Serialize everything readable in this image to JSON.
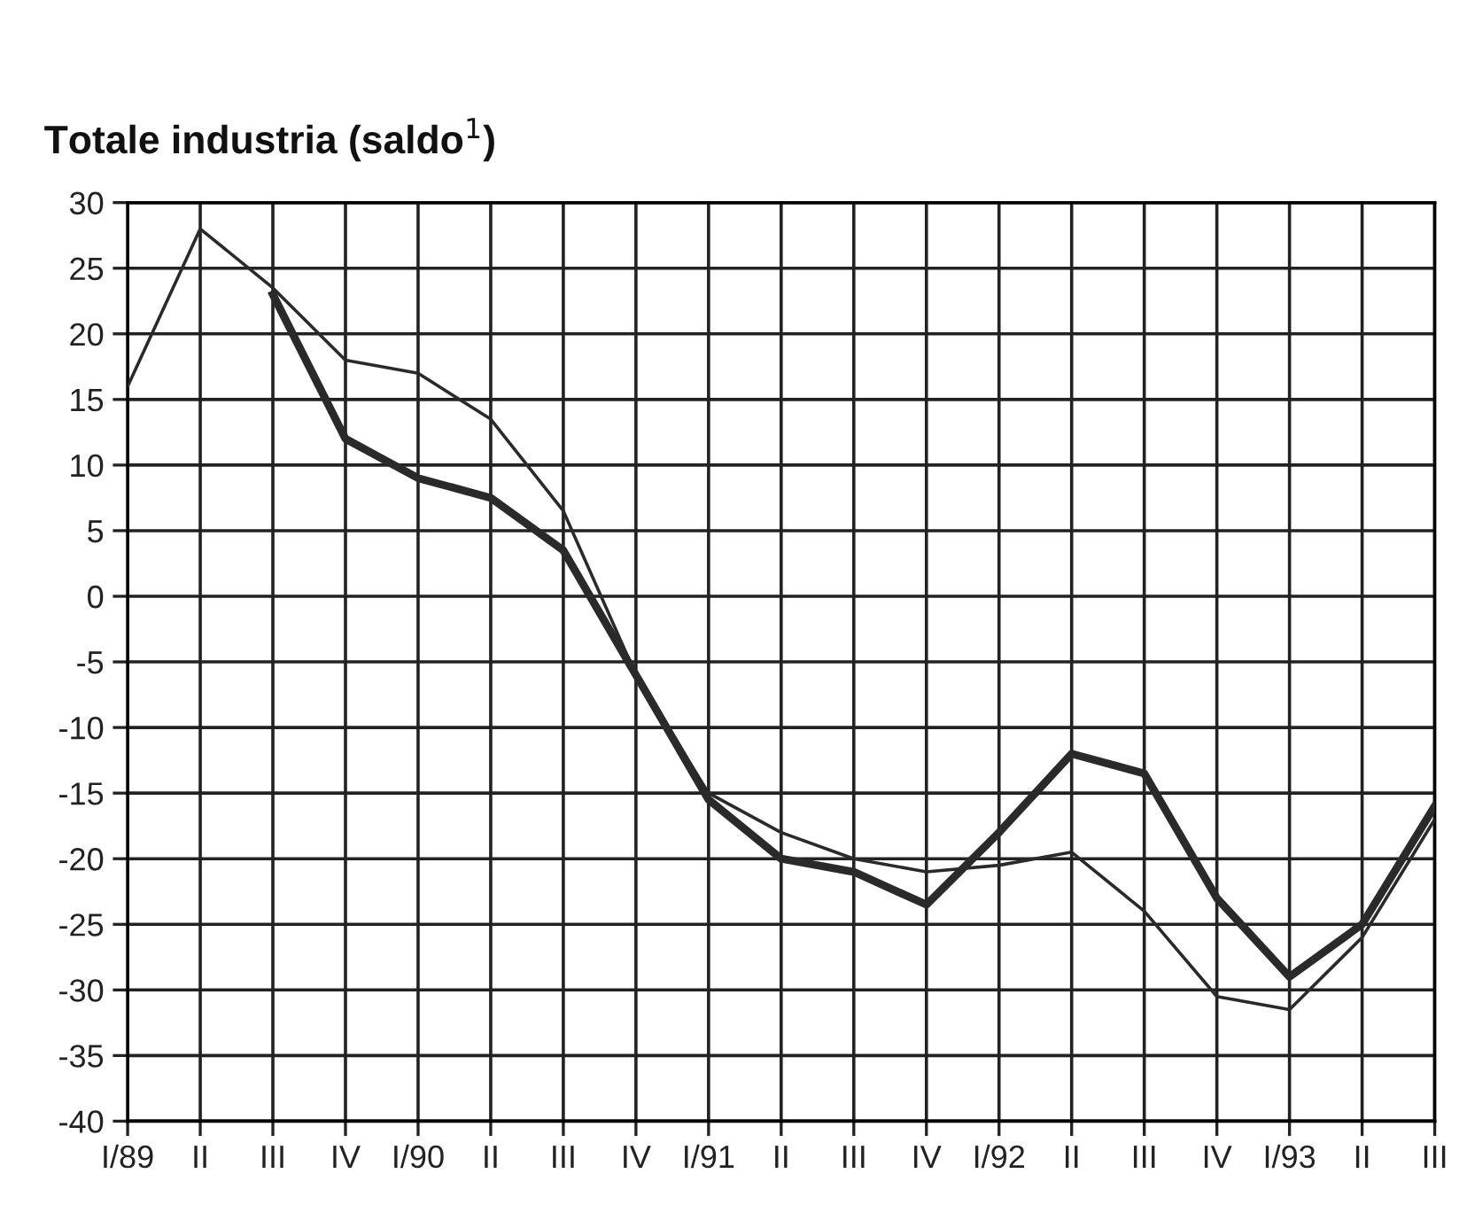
{
  "chart_data": {
    "type": "line",
    "title": "Totale industria (saldo$^{1}$)",
    "categories": [
      "I/89",
      "II",
      "III",
      "IV",
      "I/90",
      "II",
      "III",
      "IV",
      "I/91",
      "II",
      "III",
      "IV",
      "I/92",
      "II",
      "III",
      "IV",
      "I/93",
      "II",
      "III"
    ],
    "series": [
      {
        "color": "#2a2a2a",
        "values": [
          16,
          28,
          23.5,
          18,
          17,
          13.5,
          6.5,
          -6,
          -15,
          -18,
          -20,
          -21,
          -20.5,
          -19.5,
          -24,
          -30.5,
          -31.5,
          -26,
          -17
        ]
      },
      {
        "color": "#2a2a2a",
        "values": [
          null,
          null,
          23,
          12,
          9,
          7.5,
          3.5,
          -6,
          -15.5,
          -20,
          -21,
          -23.5,
          -18,
          -12,
          -13.5,
          -23,
          -29,
          -25,
          -16
        ]
      }
    ],
    "ylim": [
      -40,
      30
    ],
    "yticks": [
      -40,
      -35,
      -30,
      -25,
      -20,
      -15,
      -10,
      -5,
      0,
      5,
      10,
      15,
      20,
      25,
      30
    ],
    "grid": true,
    "legend": false,
    "marker": "none",
    "line_style": "solid"
  }
}
